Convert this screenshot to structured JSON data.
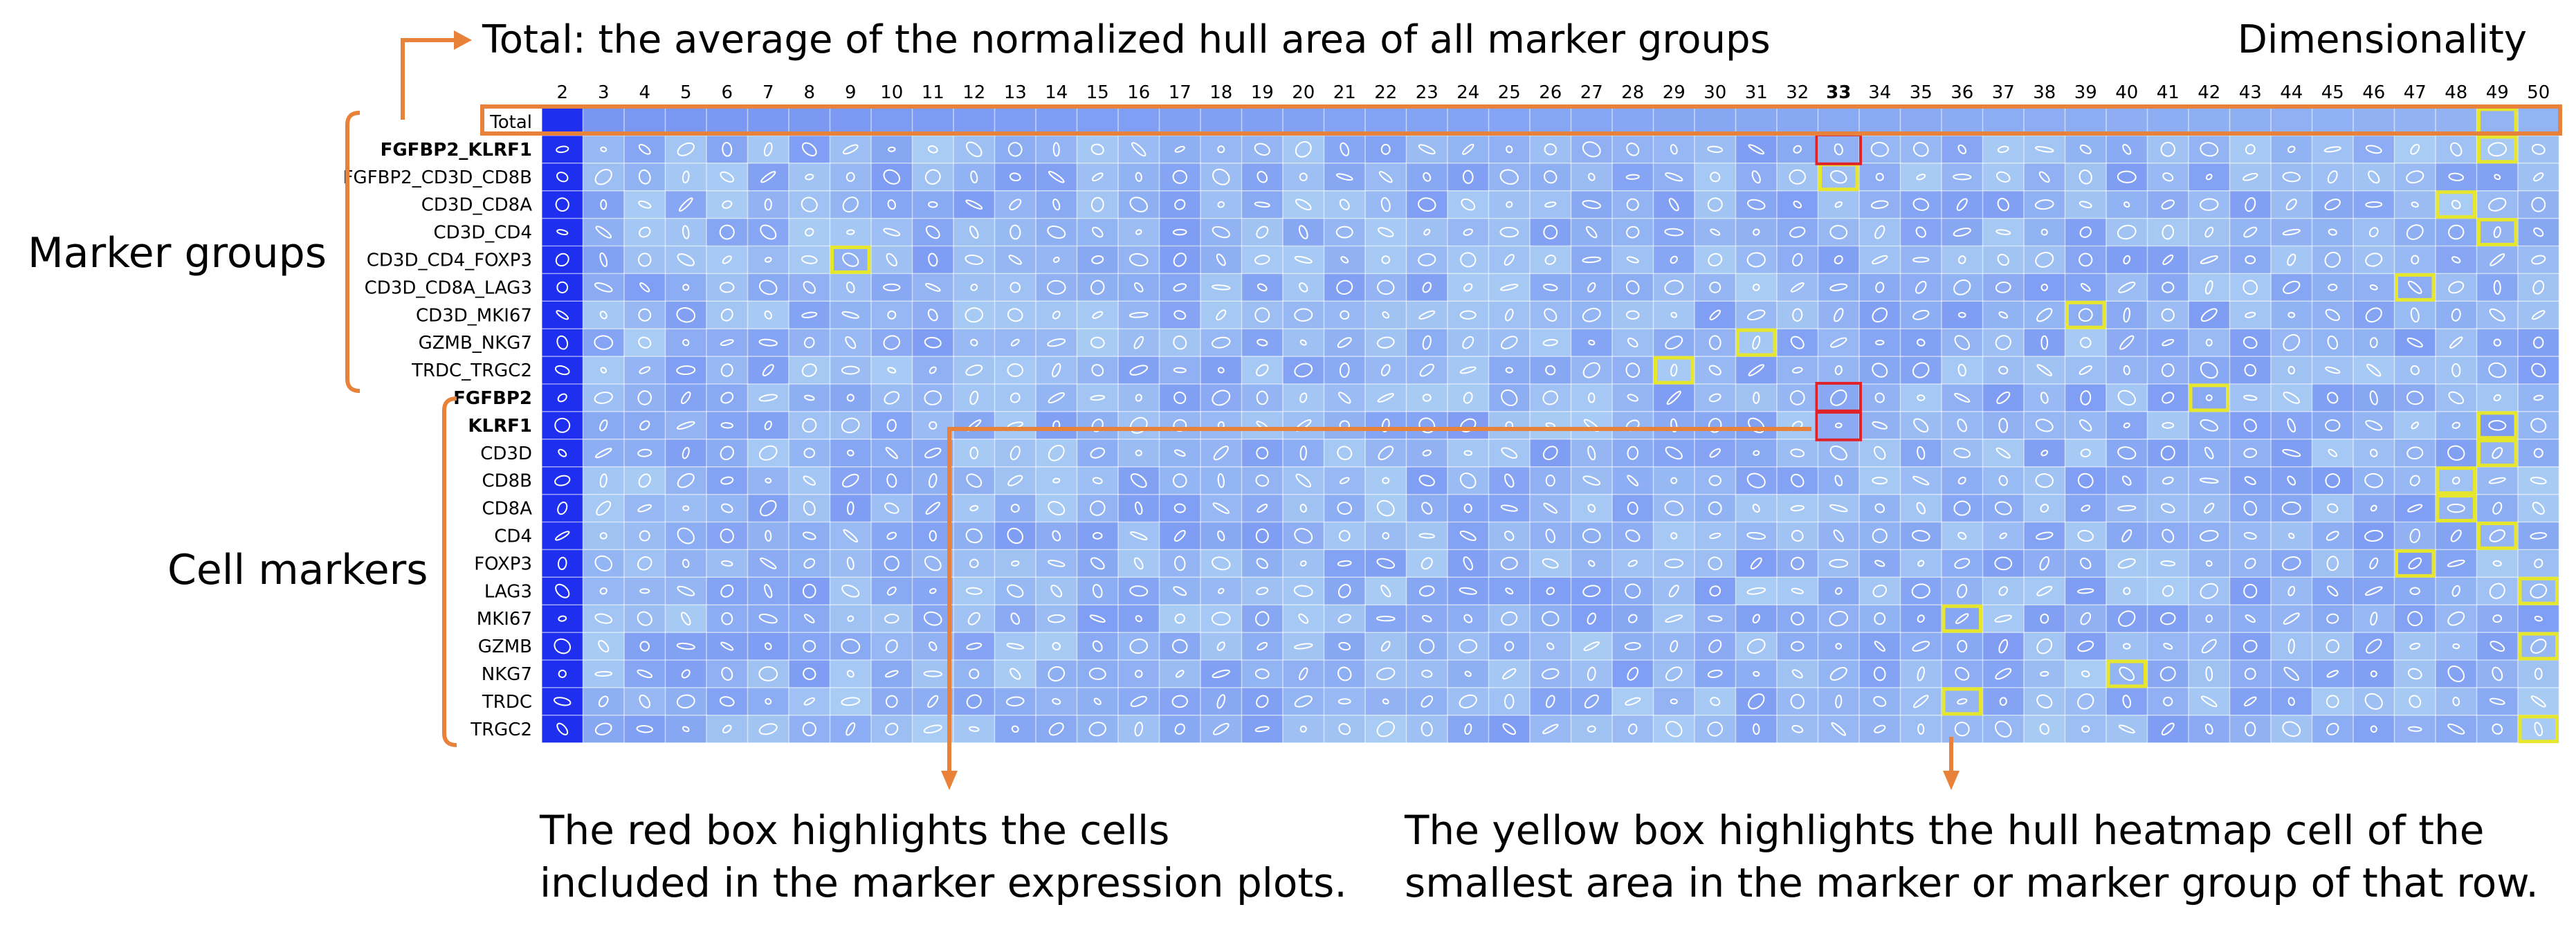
{
  "annotations": {
    "total_caption": "Total: the average of the normalized hull area of all marker groups",
    "dimensionality": "Dimensionality",
    "marker_groups": "Marker groups",
    "cell_markers": "Cell markers",
    "red_box_note": [
      "The red box highlights the cells",
      "included in the marker expression plots."
    ],
    "yellow_box_note": [
      "The yellow box highlights the hull heatmap cell of the",
      "smallest area in the marker or marker group of that row."
    ]
  },
  "colors": {
    "accent_orange": "#e8823a",
    "red_box": "#e0232b",
    "yellow_box": "#e6e62e",
    "cell_dark": "#1e2ff0",
    "cell_light": "#b5daf4"
  },
  "chart_data": {
    "type": "heatmap",
    "x_label": "Dimensionality",
    "columns": [
      2,
      3,
      4,
      5,
      6,
      7,
      8,
      9,
      10,
      11,
      12,
      13,
      14,
      15,
      16,
      17,
      18,
      19,
      20,
      21,
      22,
      23,
      24,
      25,
      26,
      27,
      28,
      29,
      30,
      31,
      32,
      33,
      34,
      35,
      36,
      37,
      38,
      39,
      40,
      41,
      42,
      43,
      44,
      45,
      46,
      47,
      48,
      49,
      50
    ],
    "highlighted_column": 33,
    "rows": [
      {
        "label": "Total",
        "group": "total",
        "bold": false
      },
      {
        "label": "FGFBP2_KLRF1",
        "group": "marker_group",
        "bold": true
      },
      {
        "label": "FGFBP2_CD3D_CD8B",
        "group": "marker_group",
        "bold": false
      },
      {
        "label": "CD3D_CD8A",
        "group": "marker_group",
        "bold": false
      },
      {
        "label": "CD3D_CD4",
        "group": "marker_group",
        "bold": false
      },
      {
        "label": "CD3D_CD4_FOXP3",
        "group": "marker_group",
        "bold": false
      },
      {
        "label": "CD3D_CD8A_LAG3",
        "group": "marker_group",
        "bold": false
      },
      {
        "label": "CD3D_MKI67",
        "group": "marker_group",
        "bold": false
      },
      {
        "label": "GZMB_NKG7",
        "group": "marker_group",
        "bold": false
      },
      {
        "label": "TRDC_TRGC2",
        "group": "marker_group",
        "bold": false
      },
      {
        "label": "FGFBP2",
        "group": "cell_marker",
        "bold": true
      },
      {
        "label": "KLRF1",
        "group": "cell_marker",
        "bold": true
      },
      {
        "label": "CD3D",
        "group": "cell_marker",
        "bold": false
      },
      {
        "label": "CD8B",
        "group": "cell_marker",
        "bold": false
      },
      {
        "label": "CD8A",
        "group": "cell_marker",
        "bold": false
      },
      {
        "label": "CD4",
        "group": "cell_marker",
        "bold": false
      },
      {
        "label": "FOXP3",
        "group": "cell_marker",
        "bold": false
      },
      {
        "label": "LAG3",
        "group": "cell_marker",
        "bold": false
      },
      {
        "label": "MKI67",
        "group": "cell_marker",
        "bold": false
      },
      {
        "label": "GZMB",
        "group": "cell_marker",
        "bold": false
      },
      {
        "label": "NKG7",
        "group": "cell_marker",
        "bold": false
      },
      {
        "label": "TRDC",
        "group": "cell_marker",
        "bold": false
      },
      {
        "label": "TRGC2",
        "group": "cell_marker",
        "bold": false
      }
    ],
    "red_boxes": [
      {
        "row": "FGFBP2_KLRF1",
        "column": 33
      },
      {
        "row": "FGFBP2",
        "column": 33
      },
      {
        "row": "KLRF1",
        "column": 33
      }
    ],
    "yellow_boxes": [
      {
        "row": "Total",
        "column": 49
      },
      {
        "row": "FGFBP2_KLRF1",
        "column": 49
      },
      {
        "row": "FGFBP2_CD3D_CD8B",
        "column": 33
      },
      {
        "row": "CD3D_CD8A",
        "column": 48
      },
      {
        "row": "CD3D_CD4",
        "column": 49
      },
      {
        "row": "CD3D_CD4_FOXP3",
        "column": 9
      },
      {
        "row": "CD3D_CD8A_LAG3",
        "column": 47
      },
      {
        "row": "CD3D_MKI67",
        "column": 39
      },
      {
        "row": "GZMB_NKG7",
        "column": 31
      },
      {
        "row": "TRDC_TRGC2",
        "column": 29
      },
      {
        "row": "FGFBP2",
        "column": 42
      },
      {
        "row": "KLRF1",
        "column": 49
      },
      {
        "row": "CD3D",
        "column": 49
      },
      {
        "row": "CD8B",
        "column": 48
      },
      {
        "row": "CD8A",
        "column": 48
      },
      {
        "row": "CD4",
        "column": 49
      },
      {
        "row": "FOXP3",
        "column": 47
      },
      {
        "row": "LAG3",
        "column": 50
      },
      {
        "row": "MKI67",
        "column": 36
      },
      {
        "row": "GZMB",
        "column": 50
      },
      {
        "row": "NKG7",
        "column": 40
      },
      {
        "row": "TRDC",
        "column": 36
      },
      {
        "row": "TRGC2",
        "column": 50
      }
    ]
  }
}
